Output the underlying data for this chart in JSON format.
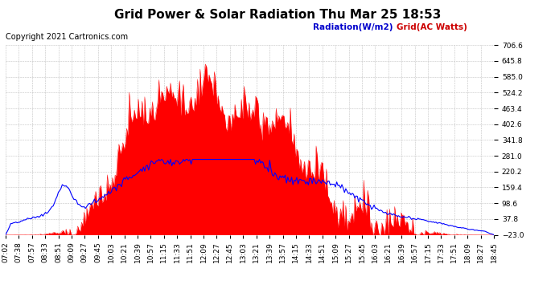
{
  "title": "Grid Power & Solar Radiation Thu Mar 25 18:53",
  "copyright": "Copyright 2021 Cartronics.com",
  "legend_radiation": "Radiation(W/m2)",
  "legend_grid": "Grid(AC Watts)",
  "legend_radiation_color": "#0000cc",
  "legend_grid_color": "#cc0000",
  "background_color": "#ffffff",
  "plot_bg_color": "#ffffff",
  "grid_color": "#bbbbbb",
  "fill_color": "#ff0000",
  "line_color": "#0000ff",
  "ylim_min": -23.0,
  "ylim_max": 706.6,
  "yticks": [
    706.6,
    645.8,
    585.0,
    524.2,
    463.4,
    402.6,
    341.8,
    281.0,
    220.2,
    159.4,
    98.6,
    37.8,
    -23.0
  ],
  "title_fontsize": 11,
  "copyright_fontsize": 7,
  "tick_fontsize": 6.5,
  "n_points": 380
}
